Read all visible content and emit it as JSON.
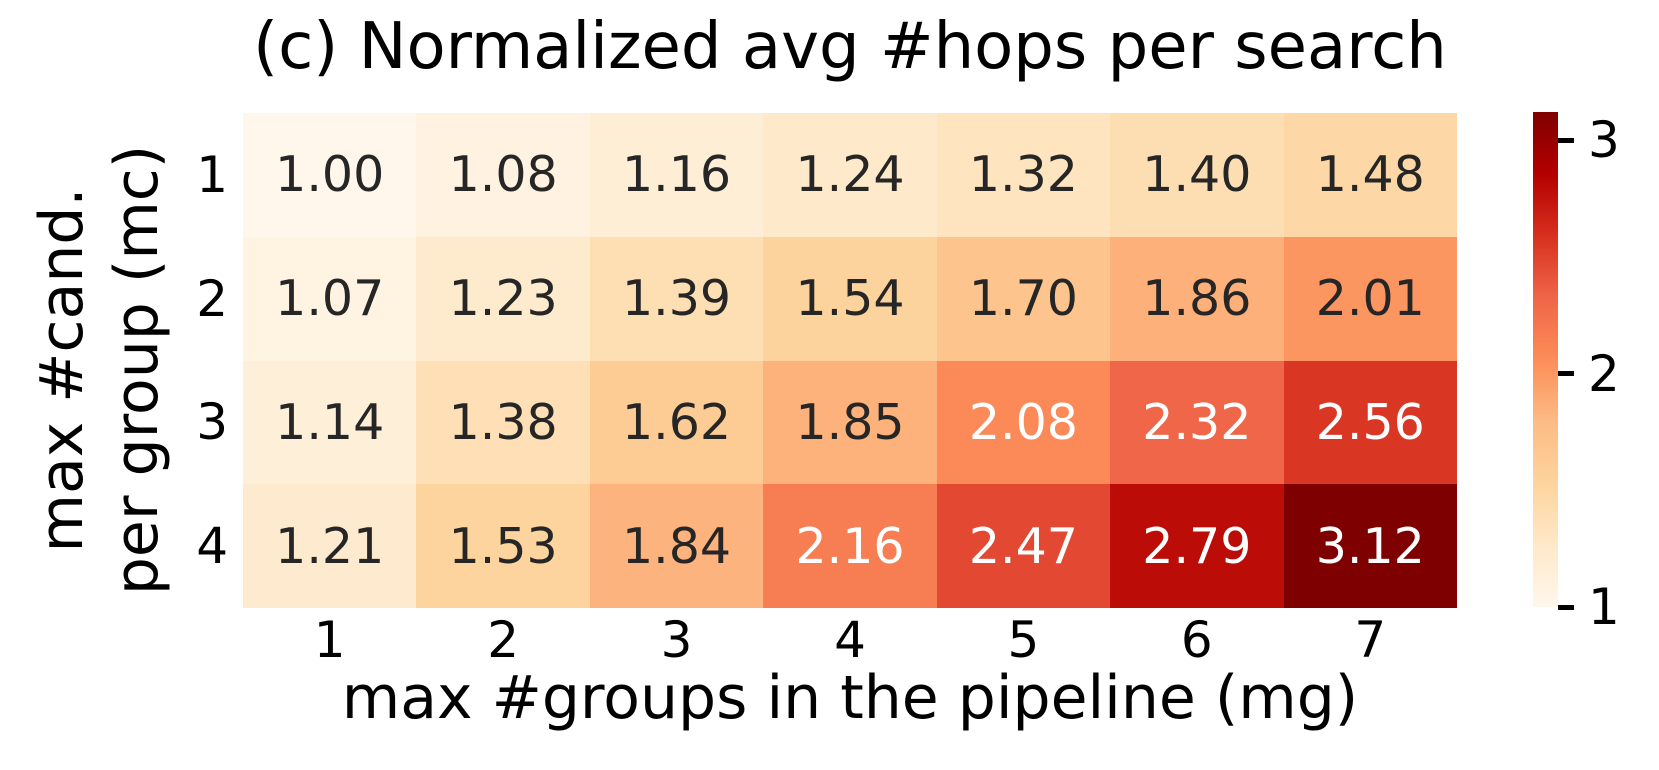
{
  "chart_data": {
    "type": "heatmap",
    "title": "(c) Normalized avg #hops per search",
    "xlabel": "max #groups in the pipeline (mg)",
    "ylabel_lines": [
      "max #cand.",
      "per group (mc)"
    ],
    "x_tick_labels": [
      "1",
      "2",
      "3",
      "4",
      "5",
      "6",
      "7"
    ],
    "y_tick_labels": [
      "1",
      "2",
      "3",
      "4"
    ],
    "values": [
      [
        1.0,
        1.08,
        1.16,
        1.24,
        1.32,
        1.4,
        1.48
      ],
      [
        1.07,
        1.23,
        1.39,
        1.54,
        1.7,
        1.86,
        2.01
      ],
      [
        1.14,
        1.38,
        1.62,
        1.85,
        2.08,
        2.32,
        2.56
      ],
      [
        1.21,
        1.53,
        1.84,
        2.16,
        2.47,
        2.79,
        3.12
      ]
    ],
    "value_decimals": 2,
    "vmin": 1.0,
    "vmax": 3.12,
    "grid": false,
    "colors": {
      "colormap_name": "OrRd",
      "colormap_stops": [
        "#fff7ec",
        "#fee8c8",
        "#fdd49e",
        "#fdbb84",
        "#fc8d59",
        "#ef6548",
        "#d7301f",
        "#b30000",
        "#7f0000"
      ],
      "annotation_dark": "#262626",
      "annotation_light": "#ffffff",
      "background": "#ffffff",
      "text": "#000000"
    },
    "colorbar": {
      "position": "right",
      "tick_values": [
        1,
        2,
        3
      ],
      "tick_labels": [
        "1",
        "2",
        "3"
      ]
    }
  }
}
